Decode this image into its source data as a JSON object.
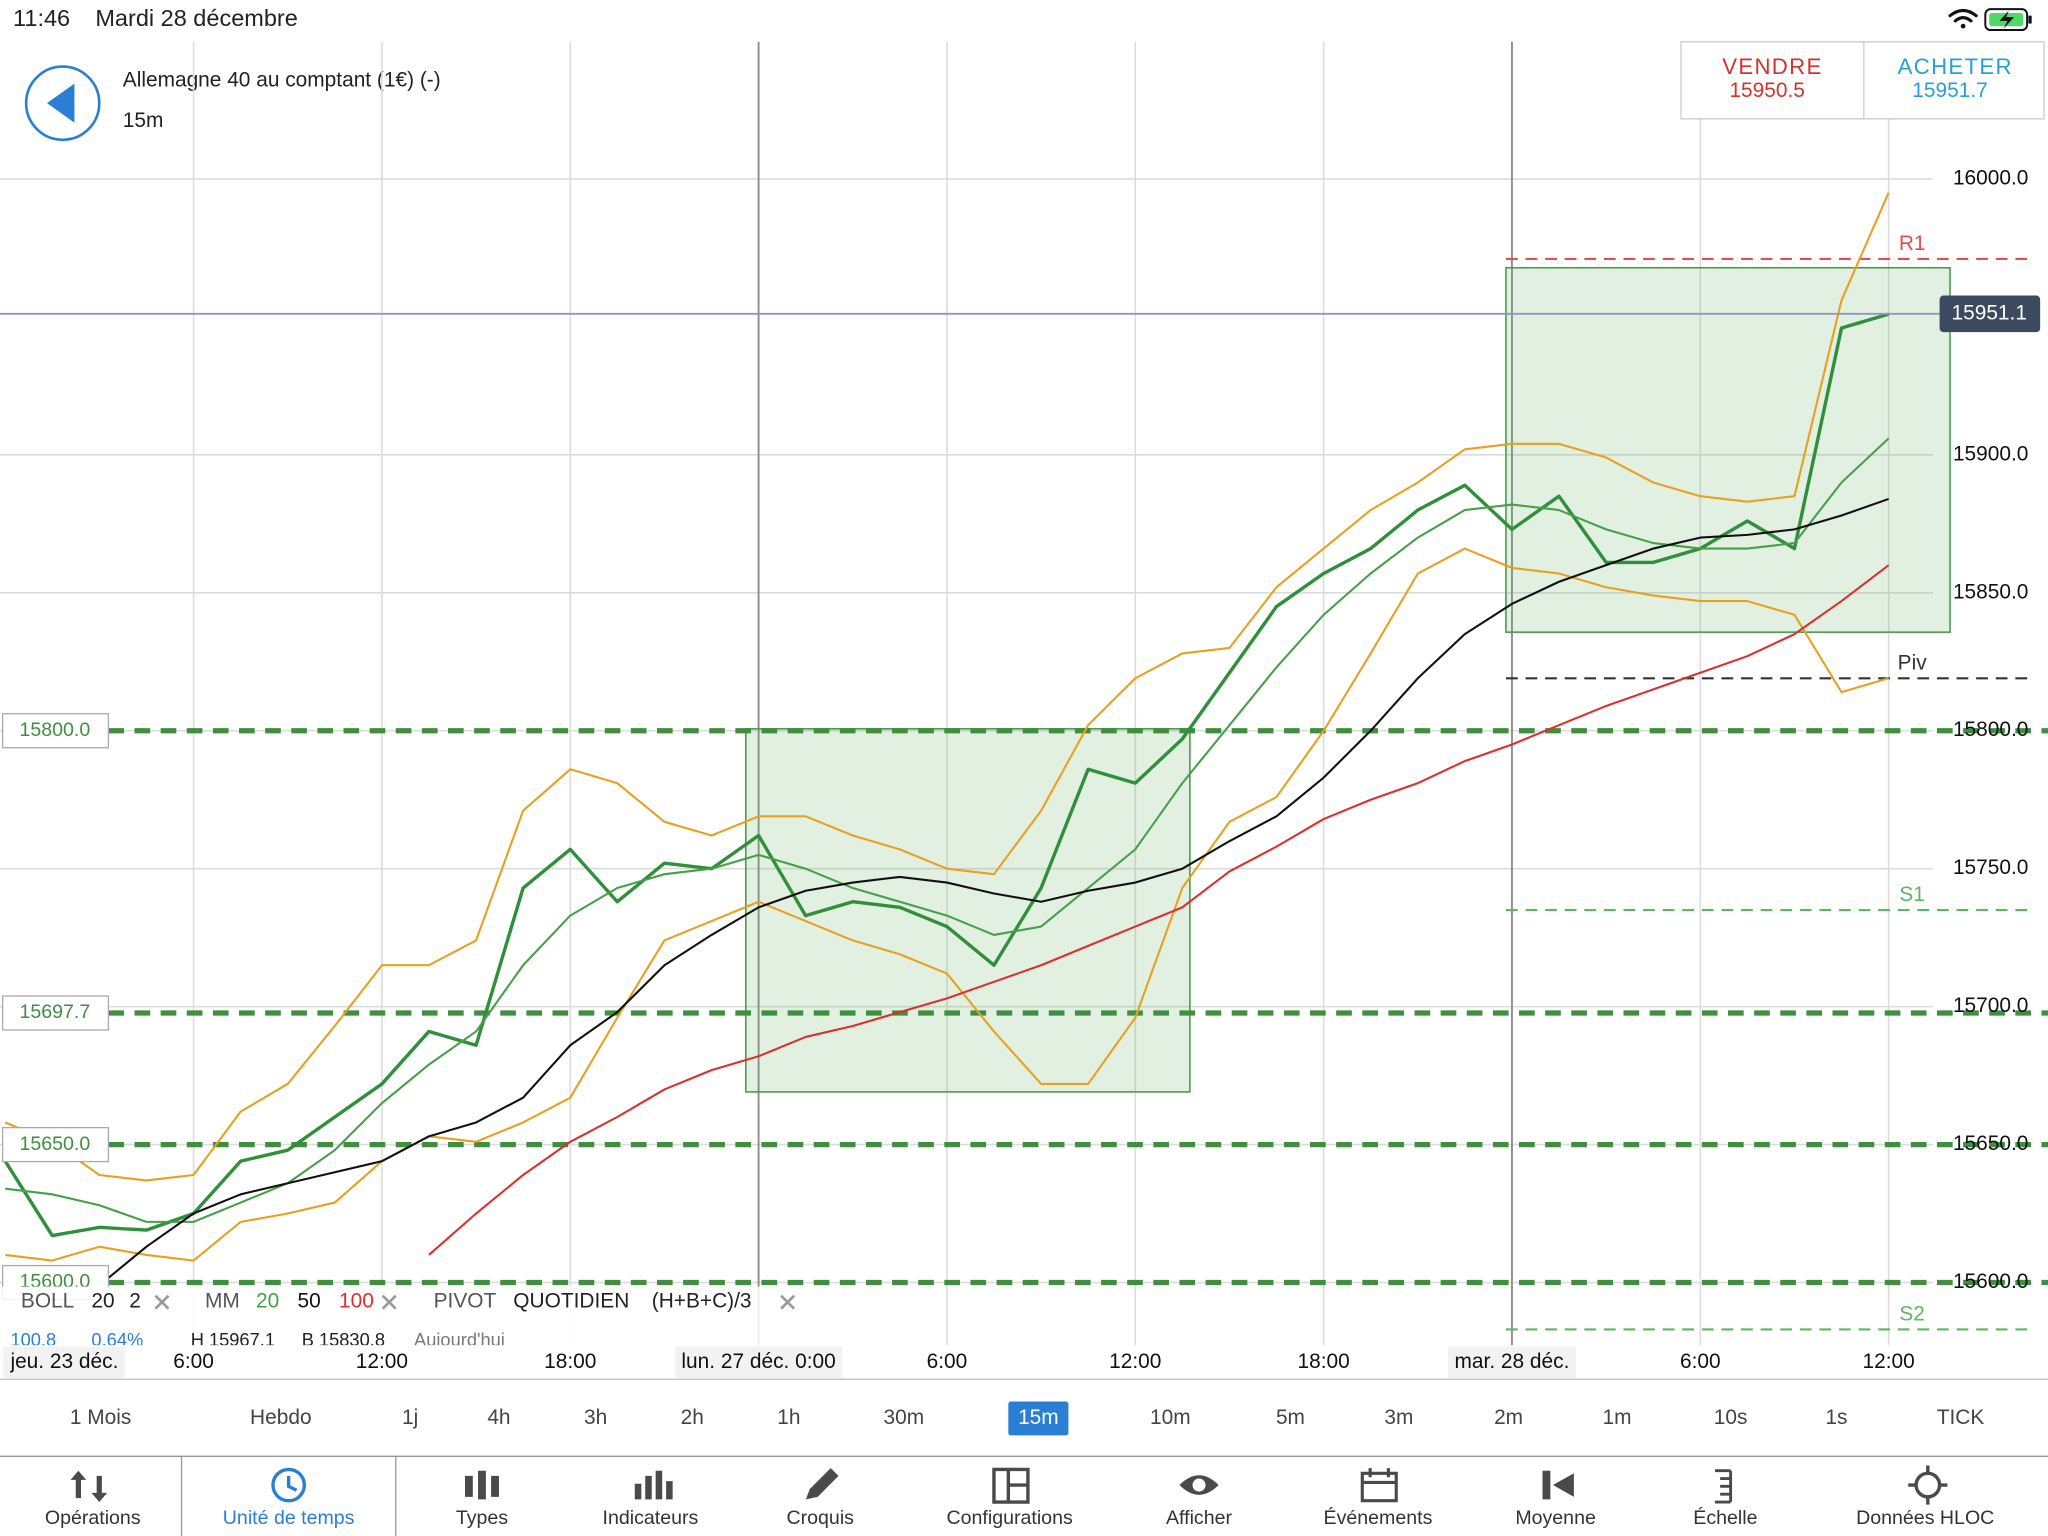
{
  "status_bar": {
    "time": "11:46",
    "date": "Mardi 28 décembre"
  },
  "header": {
    "instrument": "Allemagne 40 au comptant (1€) (-)",
    "timeframe": "15m"
  },
  "quote": {
    "sell": {
      "label": "VENDRE",
      "price": "15950.5"
    },
    "buy": {
      "label": "ACHETER",
      "price": "15951.7"
    }
  },
  "chart_data": {
    "type": "line",
    "categories": [
      "jeu. 23 déc.",
      null,
      null,
      null,
      "6:00",
      null,
      null,
      null,
      "12:00",
      null,
      null,
      null,
      "18:00",
      null,
      null,
      null,
      "lun. 27 déc. 0:00",
      null,
      null,
      null,
      "6:00",
      null,
      null,
      null,
      "12:00",
      null,
      null,
      null,
      "18:00",
      null,
      null,
      null,
      "mar. 28 déc.",
      null,
      null,
      null,
      "6:00",
      null,
      null,
      null,
      "12:00"
    ],
    "series": [
      {
        "color": "#2f8f3a",
        "values": [
          15644,
          15617,
          15620,
          15619,
          15625,
          15644,
          15648,
          15660,
          15672,
          15691,
          15686,
          15743,
          15757,
          15738,
          15752,
          15750,
          15762,
          15733,
          15738,
          15736,
          15729,
          15715,
          15743,
          15786,
          15781,
          15797,
          15821,
          15845,
          15857,
          15866,
          15880,
          15889,
          15873,
          15885,
          15861,
          15861,
          15866,
          15876,
          15866,
          15946,
          15951
        ]
      },
      {
        "color": "#e8a020",
        "values": [
          15658,
          15651,
          15639,
          15637,
          15639,
          15662,
          15672,
          15693,
          15715,
          15715,
          15724,
          15771,
          15786,
          15781,
          15767,
          15762,
          15769,
          15769,
          15762,
          15757,
          15750,
          15748,
          15771,
          15802,
          15819,
          15828,
          15830,
          15852,
          15866,
          15880,
          15890,
          15902,
          15904,
          15904,
          15899,
          15890,
          15885,
          15883,
          15885,
          15956,
          15995
        ]
      },
      {
        "color": "#e8a020",
        "values": [
          15610,
          15608,
          15613,
          15610,
          15608,
          15622,
          15625,
          15629,
          15644,
          15653,
          15651,
          15658,
          15667,
          15696,
          15724,
          15731,
          15738,
          15731,
          15724,
          15719,
          15712,
          15691,
          15672,
          15672,
          15696,
          15743,
          15767,
          15776,
          15800,
          15828,
          15857,
          15866,
          15859,
          15857,
          15852,
          15849,
          15847,
          15847,
          15842,
          15814,
          15819
        ]
      },
      {
        "name": "20",
        "color": "#45a047",
        "values": [
          15634,
          15632,
          15628,
          15622,
          15622,
          15629,
          15636,
          15648,
          15665,
          15679,
          15691,
          15715,
          15733,
          15743,
          15748,
          15750,
          15755,
          15750,
          15743,
          15738,
          15733,
          15726,
          15729,
          15743,
          15757,
          15781,
          15802,
          15823,
          15842,
          15857,
          15870,
          15880,
          15882,
          15880,
          15873,
          15868,
          15866,
          15866,
          15868,
          15890,
          15906
        ]
      },
      {
        "name": "50",
        "color": "#111111",
        "values": [
          null,
          null,
          15599,
          15613,
          15625,
          15632,
          15636,
          15640,
          15644,
          15653,
          15658,
          15667,
          15686,
          15698,
          15715,
          15726,
          15736,
          15742,
          15745,
          15747,
          15745,
          15741,
          15738,
          15742,
          15745,
          15750,
          15760,
          15769,
          15783,
          15800,
          15819,
          15835,
          15846,
          15854,
          15860,
          15866,
          15870,
          15871,
          15873,
          15878,
          15884
        ]
      },
      {
        "name": "100",
        "color": "#d93030",
        "values": [
          null,
          null,
          null,
          null,
          null,
          null,
          null,
          null,
          null,
          15610,
          15625,
          15639,
          15651,
          15660,
          15670,
          15677,
          15682,
          15689,
          15693,
          15698,
          15703,
          15709,
          15715,
          15722,
          15729,
          15736,
          15749,
          15758,
          15768,
          15775,
          15781,
          15789,
          15795,
          15802,
          15809,
          15815,
          15821,
          15827,
          15835,
          15847,
          15860
        ]
      }
    ],
    "ylim": [
      15578.2,
      16049.7
    ],
    "yticks": [
      {
        "value": 15600,
        "label": "15600.0"
      },
      {
        "value": 15650,
        "label": "15650.0"
      },
      {
        "value": 15700,
        "label": "15700.0"
      },
      {
        "value": 15750,
        "label": "15750.0"
      },
      {
        "value": 15800,
        "label": "15800.0"
      },
      {
        "value": 15850,
        "label": "15850.0"
      },
      {
        "value": 15900,
        "label": "15900.0"
      },
      {
        "value": 16000,
        "label": "16000.0"
      }
    ],
    "grid": true,
    "levels": [
      {
        "value": 15800,
        "label": "15800.0"
      },
      {
        "value": 15697.7,
        "label": "15697.7"
      },
      {
        "value": 15650,
        "label": "15650.0"
      },
      {
        "value": 15600,
        "label": "15600.0"
      }
    ],
    "pivots": [
      {
        "name": "R1",
        "value": 15971,
        "color": "#e05050"
      },
      {
        "name": "Piv",
        "value": 15819,
        "color": "#333333"
      },
      {
        "name": "S1",
        "value": 15735,
        "color": "#5cb85c"
      },
      {
        "name": "S2",
        "value": 15583,
        "color": "#5cb85c"
      }
    ],
    "last_price": {
      "value": 15951.1,
      "label": "15951.1"
    }
  },
  "indicators": {
    "boll": {
      "name": "BOLL",
      "params": [
        "20",
        "2"
      ]
    },
    "mm": {
      "name": "MM"
    },
    "pivot": {
      "name": "PIVOT",
      "params": [
        "QUOTIDIEN",
        "(H+B+C)/3"
      ]
    },
    "info": [
      "100.8",
      "0.64%",
      "H 15967.1",
      "B 15830.8",
      "Aujourd'hui"
    ]
  },
  "timeframes": [
    {
      "label": "1 Mois"
    },
    {
      "label": "Hebdo"
    },
    {
      "label": "1j"
    },
    {
      "label": "4h"
    },
    {
      "label": "3h"
    },
    {
      "label": "2h"
    },
    {
      "label": "1h"
    },
    {
      "label": "30m"
    },
    {
      "label": "15m",
      "selected": true
    },
    {
      "label": "10m"
    },
    {
      "label": "5m"
    },
    {
      "label": "3m"
    },
    {
      "label": "2m"
    },
    {
      "label": "1m"
    },
    {
      "label": "10s"
    },
    {
      "label": "1s"
    },
    {
      "label": "TICK"
    }
  ],
  "toolbar": [
    {
      "label": "Opérations"
    },
    {
      "label": "Unité de temps",
      "selected": true
    },
    {
      "label": "Types"
    },
    {
      "label": "Indicateurs"
    },
    {
      "label": "Croquis"
    },
    {
      "label": "Configurations"
    },
    {
      "label": "Afficher"
    },
    {
      "label": "Événements"
    },
    {
      "label": "Moyenne"
    },
    {
      "label": "Échelle"
    },
    {
      "label": "Données HLOC"
    }
  ]
}
